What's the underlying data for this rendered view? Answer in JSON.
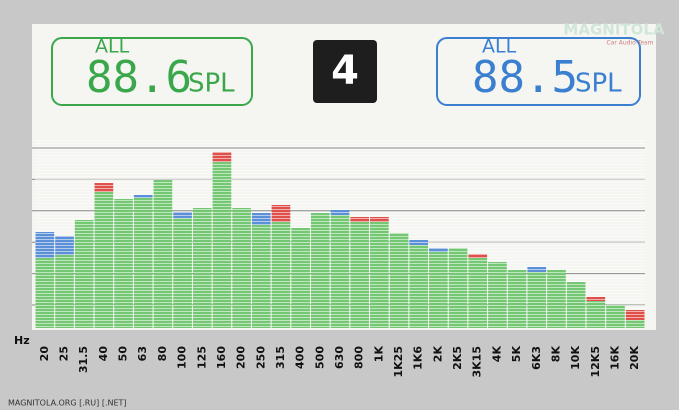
{
  "display": {
    "left": {
      "channel": "ALL",
      "level": "88.6",
      "unit": "SPL",
      "color": "#3aa84a"
    },
    "preset": "4",
    "right": {
      "channel": "ALL",
      "level": "88.5",
      "unit": "SPL",
      "color": "#3a7fd0"
    }
  },
  "watermark": {
    "logo": "MAGNITOLA",
    "tagline": "Car Audio Team",
    "footer": "MAGNITOLA.ORG [.RU] [.NET]"
  },
  "chart_data": {
    "type": "bar",
    "x_label": "Hz",
    "base_color": "#74c874",
    "categories": [
      "20",
      "25",
      "31.5",
      "40",
      "50",
      "63",
      "80",
      "100",
      "125",
      "160",
      "200",
      "250",
      "315",
      "400",
      "500",
      "630",
      "800",
      "1K",
      "1K25",
      "1K6",
      "2K",
      "2K5",
      "3K15",
      "4K",
      "5K",
      "6K3",
      "8K",
      "10K",
      "12K5",
      "16K",
      "20K"
    ],
    "series": [
      {
        "color": "#5b8fd8",
        "values": [
          48,
          46,
          54,
          68,
          64.5,
          66.5,
          74,
          58,
          60,
          83,
          60,
          57.5,
          53,
          50,
          57.5,
          59,
          53,
          53,
          47.5,
          44,
          40,
          40,
          35,
          33,
          29,
          30.5,
          29,
          23,
          13.5,
          11.5,
          4
        ]
      },
      {
        "color": "#e0504a",
        "values": [
          35,
          36.5,
          54,
          72.5,
          64.5,
          65,
          74,
          55,
          60,
          88,
          60,
          51.5,
          61.5,
          50,
          57.5,
          56.5,
          55.5,
          55.5,
          47.5,
          41.5,
          38,
          40,
          37,
          33,
          29,
          28,
          29,
          23,
          15.5,
          11.5,
          9
        ]
      }
    ],
    "ylim": [
      0,
      90
    ]
  }
}
